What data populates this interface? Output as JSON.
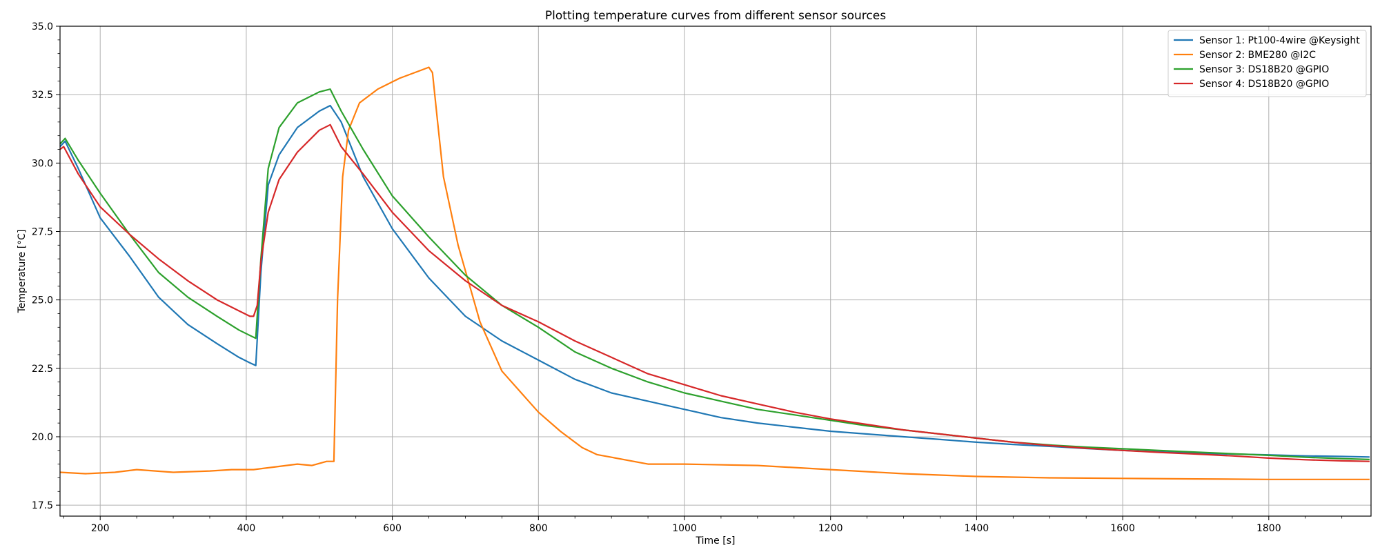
{
  "chart_data": {
    "type": "line",
    "title": "Plotting temperature curves from different sensor sources",
    "xlabel": "Time [s]",
    "ylabel": "Temperature [°C]",
    "xlim": [
      145,
      1940
    ],
    "ylim": [
      17.1,
      35.0
    ],
    "xticks": [
      200,
      400,
      600,
      800,
      1000,
      1200,
      1400,
      1600,
      1800
    ],
    "yticks": [
      17.5,
      20.0,
      22.5,
      25.0,
      27.5,
      30.0,
      32.5,
      35.0
    ],
    "xtick_labels": [
      "200",
      "400",
      "600",
      "800",
      "1000",
      "1200",
      "1400",
      "1600",
      "1800"
    ],
    "ytick_labels": [
      "17.5",
      "20.0",
      "22.5",
      "25.0",
      "27.5",
      "30.0",
      "32.5",
      "35.0"
    ],
    "grid": true,
    "legend_position": "top-right",
    "series": [
      {
        "name": "Sensor 1: Pt100-4wire @Keysight",
        "color": "#1f77b4",
        "x": [
          145,
          152,
          170,
          200,
          240,
          280,
          320,
          360,
          390,
          405,
          413,
          420,
          430,
          445,
          470,
          500,
          515,
          530,
          560,
          600,
          650,
          700,
          750,
          800,
          850,
          900,
          950,
          1000,
          1050,
          1100,
          1150,
          1200,
          1250,
          1300,
          1350,
          1400,
          1450,
          1500,
          1550,
          1600,
          1650,
          1700,
          1750,
          1800,
          1850,
          1900,
          1938
        ],
        "y": [
          30.6,
          30.8,
          29.8,
          28.0,
          26.6,
          25.1,
          24.1,
          23.4,
          22.9,
          22.7,
          22.6,
          26.0,
          29.2,
          30.3,
          31.3,
          31.9,
          32.1,
          31.5,
          29.5,
          27.6,
          25.8,
          24.4,
          23.5,
          22.8,
          22.1,
          21.6,
          21.3,
          21.0,
          20.7,
          20.5,
          20.35,
          20.2,
          20.1,
          20.0,
          19.9,
          19.8,
          19.72,
          19.65,
          19.57,
          19.5,
          19.45,
          19.4,
          19.37,
          19.34,
          19.3,
          19.28,
          19.26
        ]
      },
      {
        "name": "Sensor 2: BME280 @I2C",
        "color": "#ff7f0e",
        "x": [
          145,
          180,
          220,
          250,
          300,
          350,
          380,
          410,
          440,
          470,
          490,
          510,
          520,
          525,
          532,
          540,
          555,
          580,
          610,
          640,
          650,
          655,
          662,
          670,
          690,
          720,
          750,
          780,
          800,
          830,
          860,
          880,
          900,
          950,
          1000,
          1100,
          1200,
          1300,
          1400,
          1500,
          1600,
          1700,
          1800,
          1938
        ],
        "y": [
          18.7,
          18.65,
          18.7,
          18.8,
          18.7,
          18.75,
          18.8,
          18.8,
          18.9,
          19.0,
          18.95,
          19.1,
          19.1,
          25.0,
          29.5,
          31.2,
          32.2,
          32.7,
          33.1,
          33.4,
          33.5,
          33.3,
          31.5,
          29.5,
          27.0,
          24.2,
          22.4,
          21.5,
          20.9,
          20.2,
          19.6,
          19.35,
          19.25,
          19.0,
          19.0,
          18.95,
          18.8,
          18.65,
          18.55,
          18.5,
          18.48,
          18.46,
          18.44,
          18.44
        ]
      },
      {
        "name": "Sensor 3: DS18B20 @GPIO",
        "color": "#2ca02c",
        "x": [
          145,
          152,
          170,
          200,
          240,
          280,
          320,
          360,
          390,
          405,
          413,
          420,
          430,
          445,
          470,
          500,
          515,
          530,
          560,
          600,
          650,
          700,
          750,
          800,
          850,
          900,
          950,
          1000,
          1050,
          1100,
          1150,
          1200,
          1250,
          1300,
          1350,
          1400,
          1450,
          1500,
          1550,
          1600,
          1650,
          1700,
          1750,
          1800,
          1850,
          1900,
          1938
        ],
        "y": [
          30.7,
          30.9,
          30.1,
          28.9,
          27.4,
          26.0,
          25.1,
          24.4,
          23.9,
          23.7,
          23.6,
          26.5,
          29.8,
          31.3,
          32.2,
          32.6,
          32.7,
          31.9,
          30.5,
          28.8,
          27.3,
          25.9,
          24.8,
          24.0,
          23.1,
          22.5,
          22.0,
          21.6,
          21.3,
          21.0,
          20.8,
          20.6,
          20.4,
          20.25,
          20.1,
          19.95,
          19.8,
          19.7,
          19.62,
          19.56,
          19.5,
          19.44,
          19.38,
          19.32,
          19.25,
          19.2,
          19.17
        ]
      },
      {
        "name": "Sensor 4: DS18B20 @GPIO",
        "color": "#d62728",
        "x": [
          145,
          150,
          170,
          200,
          240,
          280,
          320,
          360,
          390,
          405,
          410,
          415,
          420,
          430,
          445,
          470,
          500,
          515,
          530,
          560,
          600,
          650,
          700,
          750,
          800,
          850,
          900,
          950,
          1000,
          1050,
          1100,
          1150,
          1200,
          1250,
          1300,
          1350,
          1400,
          1450,
          1500,
          1550,
          1600,
          1650,
          1700,
          1750,
          1800,
          1850,
          1900,
          1938
        ],
        "y": [
          30.5,
          30.6,
          29.6,
          28.4,
          27.4,
          26.5,
          25.7,
          25.0,
          24.6,
          24.4,
          24.4,
          24.8,
          26.4,
          28.2,
          29.4,
          30.4,
          31.2,
          31.4,
          30.6,
          29.6,
          28.2,
          26.8,
          25.7,
          24.8,
          24.2,
          23.5,
          22.9,
          22.3,
          21.9,
          21.5,
          21.2,
          20.9,
          20.65,
          20.45,
          20.25,
          20.1,
          19.95,
          19.8,
          19.68,
          19.58,
          19.5,
          19.43,
          19.37,
          19.3,
          19.22,
          19.16,
          19.12,
          19.1
        ]
      }
    ]
  }
}
